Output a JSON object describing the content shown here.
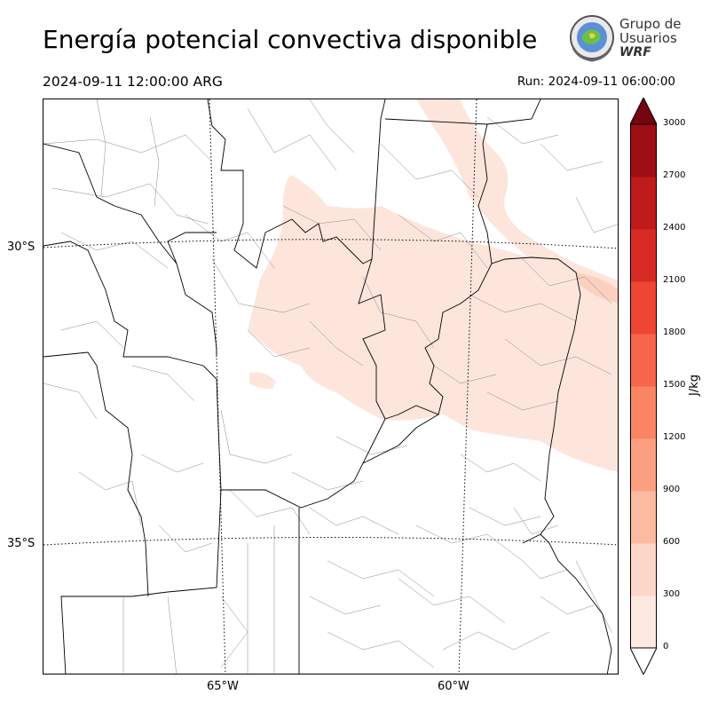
{
  "header": {
    "title": "Energía potencial convectiva disponible",
    "valid_time": "2024-09-11 12:00:00 ARG",
    "run_time": "Run: 2024-09-11 06:00:00"
  },
  "logo": {
    "line1": "Grupo de",
    "line2": "Usuarios",
    "line3": "WRF"
  },
  "map": {
    "latitude_labels": [
      "30°S",
      "35°S"
    ],
    "longitude_labels": [
      "65°W",
      "60°W"
    ],
    "field": "CAPE"
  },
  "colorbar": {
    "unit": "J/kg",
    "ticks": [
      "0",
      "300",
      "600",
      "900",
      "1200",
      "1500",
      "1800",
      "2100",
      "2400",
      "2700",
      "3000"
    ],
    "colors": [
      "#fee9e1",
      "#fcd6c8",
      "#fcbba1",
      "#fc9f81",
      "#fb8464",
      "#f7654a",
      "#ef4533",
      "#d82a24",
      "#bf1a1c",
      "#9e0e15",
      "#770510"
    ],
    "extend": "both"
  },
  "colors": {
    "field_low": "#fde5dc",
    "field_mid": "#fbd0bf",
    "boundary": "#000000",
    "department": "#888888"
  }
}
